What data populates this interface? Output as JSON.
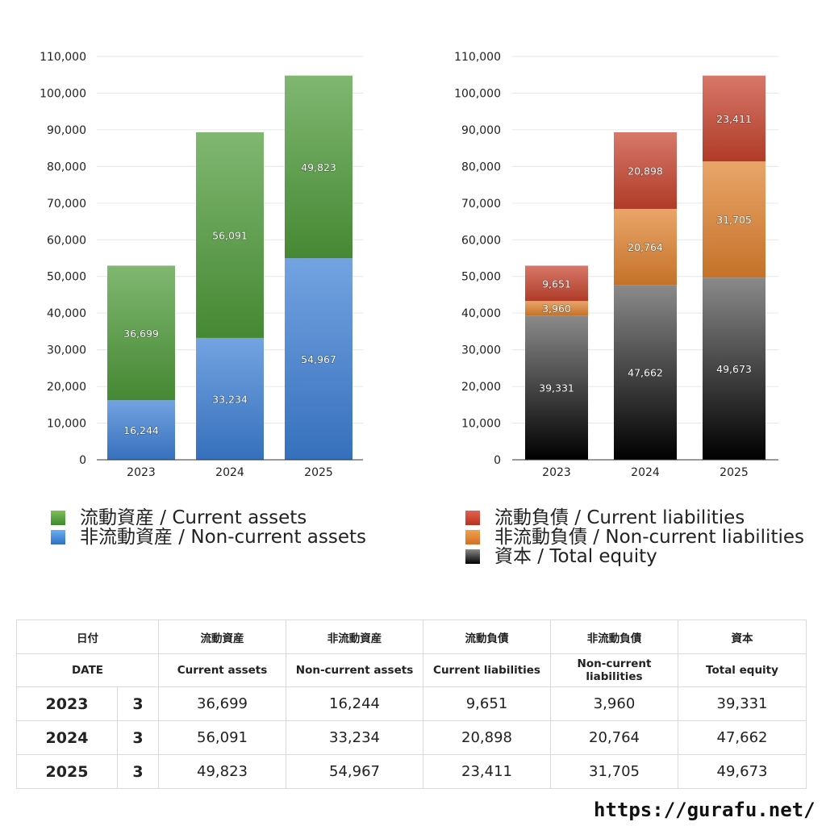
{
  "chart_data": [
    {
      "type": "bar",
      "stacked": true,
      "categories": [
        "2023",
        "2024",
        "2025"
      ],
      "series": [
        {
          "name": "非流動資産 / Non-current assets",
          "values": [
            16244,
            33234,
            54967
          ],
          "color": "#3d7fd6"
        },
        {
          "name": "流動資産 / Current assets",
          "values": [
            36699,
            56091,
            49823
          ],
          "color": "#4e9b3a"
        }
      ],
      "ylim": [
        0,
        110000
      ],
      "yticks": [
        "0",
        "10,000",
        "20,000",
        "30,000",
        "40,000",
        "50,000",
        "60,000",
        "70,000",
        "80,000",
        "90,000",
        "100,000",
        "110,000"
      ],
      "data_labels": [
        [
          "16,244",
          "33,234",
          "54,967"
        ],
        [
          "36,699",
          "56,091",
          "49,823"
        ]
      ],
      "grid": true,
      "legend_position": "bottom"
    },
    {
      "type": "bar",
      "stacked": true,
      "categories": [
        "2023",
        "2024",
        "2025"
      ],
      "series": [
        {
          "name": "資本 / Total equity",
          "values": [
            39331,
            47662,
            49673
          ],
          "color": "#2a2a2a"
        },
        {
          "name": "非流動負債 / Non-current liabilities",
          "values": [
            3960,
            20764,
            31705
          ],
          "color": "#e0822f"
        },
        {
          "name": "流動負債 / Current liabilities",
          "values": [
            9651,
            20898,
            23411
          ],
          "color": "#c8432e"
        }
      ],
      "ylim": [
        0,
        110000
      ],
      "yticks": [
        "0",
        "10,000",
        "20,000",
        "30,000",
        "40,000",
        "50,000",
        "60,000",
        "70,000",
        "80,000",
        "90,000",
        "100,000",
        "110,000"
      ],
      "data_labels": [
        [
          "39,331",
          "47,662",
          "49,673"
        ],
        [
          "3,960",
          "20,764",
          "31,705"
        ],
        [
          "9,651",
          "20,898",
          "23,411"
        ]
      ],
      "grid": true,
      "legend_position": "bottom"
    }
  ],
  "legend_left": [
    {
      "label": "流動資産 / Current assets",
      "color": "#4e9b3a"
    },
    {
      "label": "非流動資産 / Non-current assets",
      "color": "#3d7fd6"
    }
  ],
  "legend_right": [
    {
      "label": "流動負債 / Current liabilities",
      "color": "#c8432e"
    },
    {
      "label": "非流動負債 / Non-current liabilities",
      "color": "#e0822f"
    },
    {
      "label": "資本 / Total equity",
      "color": "#2a2a2a"
    }
  ],
  "table": {
    "header_ja": [
      "日付",
      "流動資産",
      "非流動資産",
      "流動負債",
      "非流動負債",
      "資本"
    ],
    "header_en": [
      "DATE",
      "Current assets",
      "Non-current assets",
      "Current liabilities",
      "Non-current liabilities",
      "Total equity"
    ],
    "rows": [
      {
        "year": "2023",
        "month": "3",
        "values": [
          "36,699",
          "16,244",
          "9,651",
          "3,960",
          "39,331"
        ]
      },
      {
        "year": "2024",
        "month": "3",
        "values": [
          "56,091",
          "33,234",
          "20,898",
          "20,764",
          "47,662"
        ]
      },
      {
        "year": "2025",
        "month": "3",
        "values": [
          "49,823",
          "54,967",
          "23,411",
          "31,705",
          "49,673"
        ]
      }
    ]
  },
  "source_url": "https://gurafu.net/"
}
